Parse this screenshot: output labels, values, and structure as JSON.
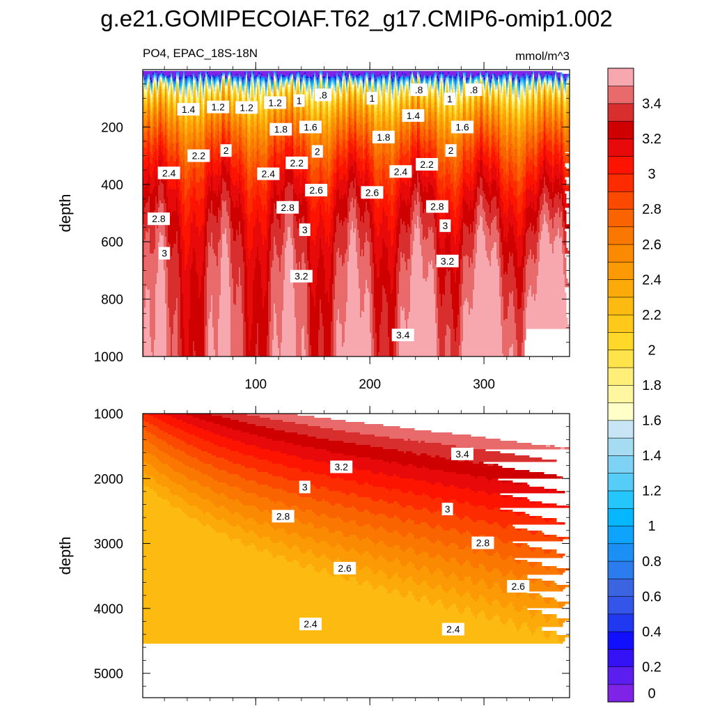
{
  "chart_data": {
    "type": "heatmap",
    "title": "g.e21.GOMIPECOIAF.T62_g17.CMIP6-omip1.002",
    "subtitle_left": "PO4, EPAC_18S-18N",
    "units": "mmol/m^3",
    "colorbar": {
      "levels": [
        0,
        0.1,
        0.2,
        0.3,
        0.4,
        0.5,
        0.6,
        0.7,
        0.8,
        0.9,
        1.0,
        1.1,
        1.2,
        1.3,
        1.4,
        1.5,
        1.6,
        1.7,
        1.8,
        1.9,
        2.0,
        2.1,
        2.2,
        2.3,
        2.4,
        2.5,
        2.6,
        2.7,
        2.8,
        2.9,
        3.0,
        3.1,
        3.2,
        3.3,
        3.4,
        3.5
      ],
      "tick_labels": [
        "0",
        "0.2",
        "0.4",
        "0.6",
        "0.8",
        "1",
        "1.2",
        "1.4",
        "1.6",
        "1.8",
        "2",
        "2.2",
        "2.4",
        "2.6",
        "2.8",
        "3",
        "3.2",
        "3.4"
      ],
      "colors": [
        "#7f24e6",
        "#5a1eee",
        "#3512f5",
        "#1010ff",
        "#1f38f0",
        "#3356e8",
        "#3a64e0",
        "#2b7cef",
        "#1c8ff5",
        "#0ea3fc",
        "#07b7fd",
        "#25c6fc",
        "#55cdf7",
        "#7ed2f3",
        "#a6dcf2",
        "#c7e5f4",
        "#ffffc8",
        "#fff6a0",
        "#ffee78",
        "#ffe34a",
        "#ffd82a",
        "#fec91a",
        "#fdba10",
        "#fcaa09",
        "#fc9a05",
        "#fb8a03",
        "#fa7801",
        "#fa6400",
        "#fb4a00",
        "#fc2c00",
        "#fd1400",
        "#e80a0a",
        "#cf0000",
        "#d82e2e",
        "#e86a6a",
        "#f7a8ae"
      ]
    },
    "panels": [
      {
        "name": "upper",
        "ylabel": "depth",
        "xlabel": "",
        "xlim": [
          1,
          375
        ],
        "ylim": [
          0,
          1000
        ],
        "y_inverted": true,
        "x_ticks": [
          100,
          200,
          300
        ],
        "x_tick_labels": [
          "100",
          "200",
          "300"
        ],
        "y_ticks": [
          200,
          400,
          600,
          800,
          1000
        ],
        "y_tick_labels": [
          "200",
          "400",
          "600",
          "800",
          "1000"
        ],
        "contour_labels": [
          {
            "text": "1.4",
            "x": 41,
            "y": 138
          },
          {
            "text": "1.2",
            "x": 67,
            "y": 130
          },
          {
            "text": "1.2",
            "x": 92,
            "y": 132
          },
          {
            "text": "1.2",
            "x": 117,
            "y": 115
          },
          {
            "text": "1",
            "x": 138,
            "y": 108
          },
          {
            "text": ".8",
            "x": 159,
            "y": 88
          },
          {
            "text": "1",
            "x": 202,
            "y": 100
          },
          {
            "text": ".8",
            "x": 243,
            "y": 70
          },
          {
            "text": "1",
            "x": 270,
            "y": 102
          },
          {
            "text": ".8",
            "x": 291,
            "y": 70
          },
          {
            "text": "1.8",
            "x": 122,
            "y": 208
          },
          {
            "text": "1.6",
            "x": 148,
            "y": 200
          },
          {
            "text": "1.4",
            "x": 238,
            "y": 160
          },
          {
            "text": "1.6",
            "x": 281,
            "y": 200
          },
          {
            "text": "1.8",
            "x": 212,
            "y": 235
          },
          {
            "text": "2",
            "x": 74,
            "y": 282
          },
          {
            "text": "2.2",
            "x": 50,
            "y": 300
          },
          {
            "text": "2",
            "x": 154,
            "y": 285
          },
          {
            "text": "2",
            "x": 271,
            "y": 282
          },
          {
            "text": "2.2",
            "x": 136,
            "y": 325
          },
          {
            "text": "2.2",
            "x": 250,
            "y": 330
          },
          {
            "text": "2.4",
            "x": 24,
            "y": 360
          },
          {
            "text": "2.4",
            "x": 111,
            "y": 363
          },
          {
            "text": "2.4",
            "x": 227,
            "y": 355
          },
          {
            "text": "2.6",
            "x": 153,
            "y": 420
          },
          {
            "text": "2.6",
            "x": 202,
            "y": 428
          },
          {
            "text": "2.8",
            "x": 15,
            "y": 520
          },
          {
            "text": "2.8",
            "x": 128,
            "y": 480
          },
          {
            "text": "2.8",
            "x": 259,
            "y": 477
          },
          {
            "text": "3",
            "x": 143,
            "y": 558
          },
          {
            "text": "3",
            "x": 266,
            "y": 544
          },
          {
            "text": "3",
            "x": 20,
            "y": 640
          },
          {
            "text": "3.2",
            "x": 140,
            "y": 720
          },
          {
            "text": "3.2",
            "x": 268,
            "y": 667
          },
          {
            "text": "3.4",
            "x": 229,
            "y": 925
          }
        ]
      },
      {
        "name": "lower",
        "ylabel": "depth",
        "xlabel": "",
        "xlim": [
          1,
          375
        ],
        "ylim": [
          1000,
          5375
        ],
        "y_inverted": true,
        "x_ticks": [
          100,
          200,
          300
        ],
        "x_tick_labels": [
          "",
          "",
          ""
        ],
        "y_ticks": [
          1000,
          2000,
          3000,
          4000,
          5000
        ],
        "y_tick_labels": [
          "1000",
          "2000",
          "3000",
          "4000",
          "5000"
        ],
        "contour_labels": [
          {
            "text": "3.4",
            "x": 281,
            "y": 1620
          },
          {
            "text": "3.2",
            "x": 175,
            "y": 1820
          },
          {
            "text": "3",
            "x": 143,
            "y": 2130
          },
          {
            "text": "3",
            "x": 268,
            "y": 2470
          },
          {
            "text": "2.8",
            "x": 124,
            "y": 2580
          },
          {
            "text": "2.8",
            "x": 299,
            "y": 2990
          },
          {
            "text": "2.6",
            "x": 178,
            "y": 3380
          },
          {
            "text": "2.6",
            "x": 330,
            "y": 3660
          },
          {
            "text": "2.4",
            "x": 148,
            "y": 4240
          },
          {
            "text": "2.4",
            "x": 273,
            "y": 4320
          }
        ]
      }
    ]
  }
}
